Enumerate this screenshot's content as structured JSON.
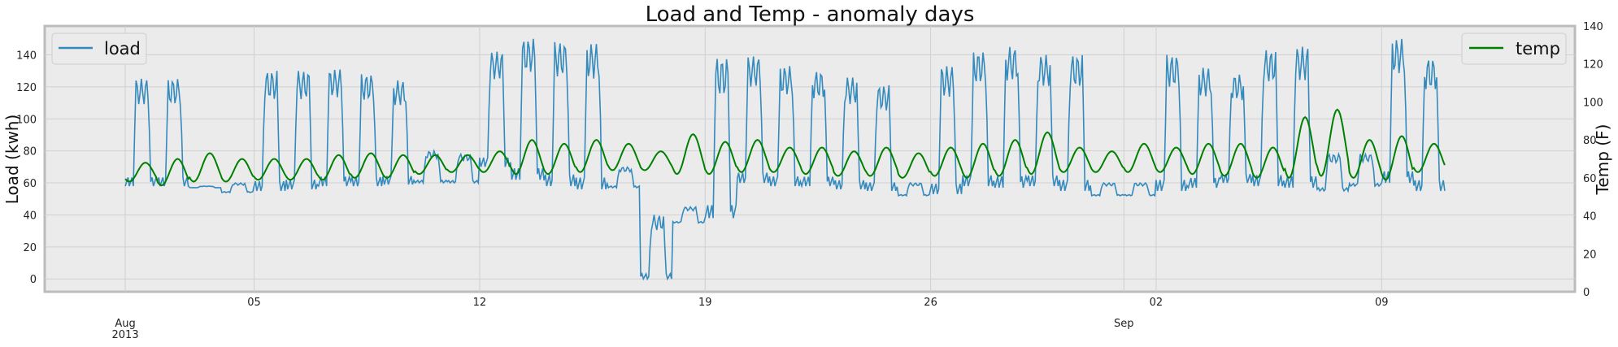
{
  "chart_data": {
    "type": "line",
    "title": "Load and Temp - anomaly days",
    "xlabel": "",
    "y_left": {
      "label": "Load (kwh)",
      "range": [
        -8,
        158
      ],
      "ticks": [
        0,
        20,
        40,
        60,
        80,
        100,
        120,
        140
      ]
    },
    "y_right": {
      "label": "Temp (F)",
      "range": [
        0,
        140
      ],
      "ticks": [
        0,
        20,
        40,
        60,
        80,
        100,
        120,
        140
      ]
    },
    "x_range": [
      "2013-07-29T12:00",
      "2013-09-15T00:00"
    ],
    "x_ticks": [
      {
        "date": "2013-08-01",
        "label": "Aug",
        "sub": "2013"
      },
      {
        "date": "2013-08-05",
        "label": "05"
      },
      {
        "date": "2013-08-12",
        "label": "12"
      },
      {
        "date": "2013-08-19",
        "label": "19"
      },
      {
        "date": "2013-08-26",
        "label": "26"
      },
      {
        "date": "2013-09-01",
        "label": "Sep"
      },
      {
        "date": "2013-09-02",
        "label": "02"
      },
      {
        "date": "2013-09-09",
        "label": "09"
      }
    ],
    "grid": true,
    "legend": [
      {
        "position": "top-left",
        "entry": "load"
      },
      {
        "position": "top-right",
        "entry": "temp"
      }
    ],
    "series": [
      {
        "name": "load",
        "axis": "left",
        "color": "#348ABD",
        "resolution": "daily min/max",
        "start": "2013-08-01",
        "daily_low": [
          58,
          58,
          57,
          54,
          55,
          56,
          58,
          58,
          59,
          60,
          60,
          70,
          62,
          58,
          56,
          57,
          0,
          35,
          38,
          60,
          58,
          58,
          56,
          55,
          52,
          53,
          58,
          57,
          58,
          55,
          52,
          52,
          55,
          57,
          60,
          58,
          57,
          55,
          58,
          60,
          55
        ],
        "daily_high": [
          125,
          125,
          58,
          60,
          130,
          130,
          131,
          128,
          124,
          80,
          78,
          142,
          150,
          148,
          147,
          70,
          40,
          45,
          138,
          139,
          133,
          130,
          126,
          121,
          60,
          133,
          142,
          145,
          140,
          140,
          60,
          60,
          140,
          132,
          128,
          143,
          145,
          78,
          78,
          150,
          138
        ]
      },
      {
        "name": "temp",
        "axis": "right",
        "color": "#008000",
        "resolution": "daily min/max",
        "start": "2013-08-01",
        "daily_low": [
          58,
          56,
          58,
          58,
          59,
          59,
          59,
          60,
          60,
          62,
          63,
          63,
          62,
          62,
          63,
          64,
          64,
          62,
          62,
          63,
          63,
          62,
          61,
          61,
          60,
          61,
          60,
          61,
          62,
          63,
          63,
          63,
          63,
          62,
          61,
          60,
          60,
          61,
          60,
          59,
          63
        ],
        "daily_high": [
          68,
          70,
          73,
          70,
          70,
          70,
          72,
          73,
          72,
          72,
          72,
          74,
          80,
          78,
          80,
          78,
          74,
          83,
          79,
          80,
          76,
          76,
          74,
          76,
          73,
          76,
          78,
          80,
          84,
          76,
          74,
          78,
          76,
          78,
          78,
          76,
          92,
          96,
          80,
          82,
          78
        ]
      }
    ]
  }
}
